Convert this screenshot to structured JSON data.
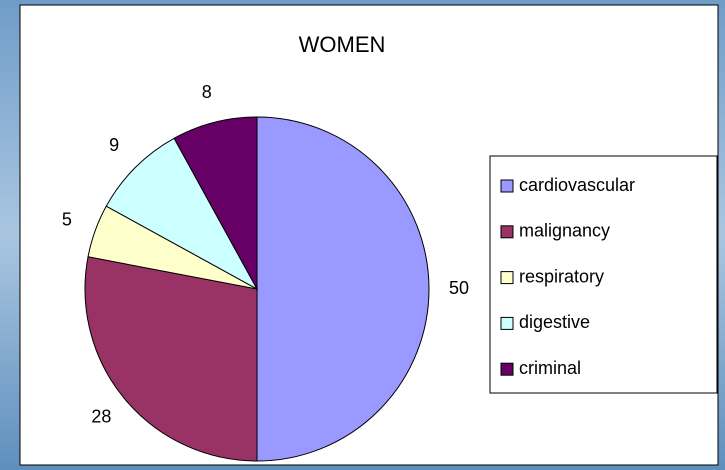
{
  "chart_data": {
    "type": "pie",
    "title": "WOMEN",
    "categories": [
      "cardiovascular",
      "malignancy",
      "respiratory",
      "digestive",
      "criminal"
    ],
    "values": [
      50,
      28,
      5,
      9,
      8
    ],
    "colors": [
      "#9999ff",
      "#993366",
      "#ffffcc",
      "#ccffff",
      "#660066"
    ],
    "legend": "right"
  }
}
